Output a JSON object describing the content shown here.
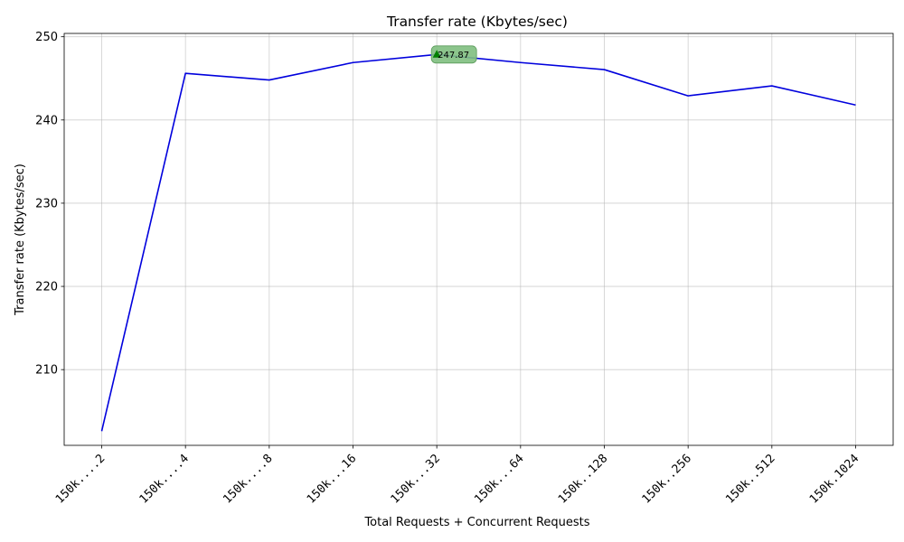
{
  "chart_data": {
    "type": "line",
    "title": "Transfer rate (Kbytes/sec)",
    "xlabel": "Total Requests + Concurrent Requests",
    "ylabel": "Transfer rate (Kbytes/sec)",
    "categories": [
      "150k....2",
      "150k....4",
      "150k....8",
      "150k...16",
      "150k...32",
      "150k...64",
      "150k..128",
      "150k..256",
      "150k..512",
      "150k.1024"
    ],
    "series": [
      {
        "values": [
          202.6,
          245.6,
          244.8,
          246.9,
          247.87,
          246.9,
          246.05,
          242.9,
          244.1,
          241.8
        ],
        "color": "#0000dd"
      }
    ],
    "yticks": [
      210,
      220,
      230,
      240,
      250
    ],
    "ylim": [
      200.9,
      250.4
    ],
    "grid": true,
    "highlight": {
      "category": "150k...32",
      "value": 247.87,
      "label": "247.87",
      "marker": "triangle-up",
      "marker_color": "#008000",
      "box_color": "#7fbf7f"
    }
  }
}
